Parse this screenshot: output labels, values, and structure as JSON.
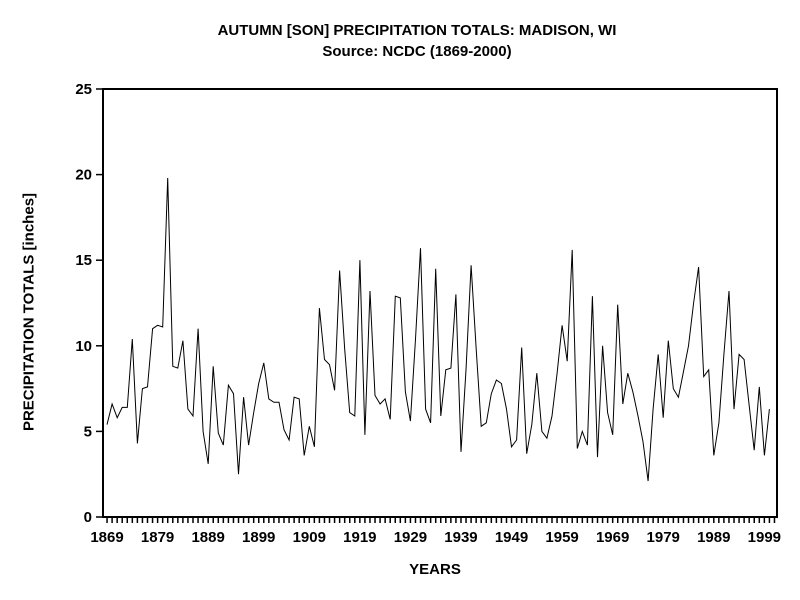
{
  "title": {
    "line1": "AUTUMN [SON] PRECIPITATION TOTALS: MADISON, WI",
    "line2": "Source: NCDC (1869-2000)"
  },
  "axes": {
    "x_label": "YEARS",
    "y_label": "PRECIPITATION TOTALS [inches]",
    "x_tick_labels": [
      1869,
      1879,
      1889,
      1899,
      1909,
      1919,
      1929,
      1939,
      1949,
      1959,
      1969,
      1979,
      1989,
      1999
    ],
    "y_tick_labels": [
      0,
      5,
      10,
      15,
      20,
      25
    ]
  },
  "colors": {
    "background": "#ffffff",
    "line": "#000000",
    "axis": "#000000",
    "text": "#000000"
  },
  "chart_data": {
    "type": "line",
    "title": "AUTUMN [SON] PRECIPITATION TOTALS: MADISON, WI",
    "subtitle": "Source: NCDC (1869-2000)",
    "xlabel": "YEARS",
    "ylabel": "PRECIPITATION TOTALS [inches]",
    "xlim": [
      1868.2,
      2001.5
    ],
    "ylim": [
      0,
      25
    ],
    "grid": false,
    "legend": "none",
    "x": [
      1869,
      1870,
      1871,
      1872,
      1873,
      1874,
      1875,
      1876,
      1877,
      1878,
      1879,
      1880,
      1881,
      1882,
      1883,
      1884,
      1885,
      1886,
      1887,
      1888,
      1889,
      1890,
      1891,
      1892,
      1893,
      1894,
      1895,
      1896,
      1897,
      1898,
      1899,
      1900,
      1901,
      1902,
      1903,
      1904,
      1905,
      1906,
      1907,
      1908,
      1909,
      1910,
      1911,
      1912,
      1913,
      1914,
      1915,
      1916,
      1917,
      1918,
      1919,
      1920,
      1921,
      1922,
      1923,
      1924,
      1925,
      1926,
      1927,
      1928,
      1929,
      1930,
      1931,
      1932,
      1933,
      1934,
      1935,
      1936,
      1937,
      1938,
      1939,
      1940,
      1941,
      1942,
      1943,
      1944,
      1945,
      1946,
      1947,
      1948,
      1949,
      1950,
      1951,
      1952,
      1953,
      1954,
      1955,
      1956,
      1957,
      1958,
      1959,
      1960,
      1961,
      1962,
      1963,
      1964,
      1965,
      1966,
      1967,
      1968,
      1969,
      1970,
      1971,
      1972,
      1973,
      1974,
      1975,
      1976,
      1977,
      1978,
      1979,
      1980,
      1981,
      1982,
      1983,
      1984,
      1985,
      1986,
      1987,
      1988,
      1989,
      1990,
      1991,
      1992,
      1993,
      1994,
      1995,
      1996,
      1997,
      1998,
      1999,
      2000
    ],
    "values": [
      5.4,
      6.6,
      5.8,
      6.4,
      6.4,
      10.4,
      4.3,
      7.5,
      7.6,
      11.0,
      11.2,
      11.1,
      19.8,
      8.8,
      8.7,
      10.3,
      6.3,
      5.9,
      11.0,
      5.0,
      3.1,
      8.8,
      4.9,
      4.2,
      7.7,
      7.2,
      2.5,
      7.0,
      4.2,
      6.1,
      7.8,
      9.0,
      6.9,
      6.7,
      6.7,
      5.1,
      4.5,
      7.0,
      6.9,
      3.6,
      5.3,
      4.1,
      12.2,
      9.2,
      8.9,
      7.4,
      14.4,
      9.8,
      6.1,
      5.9,
      15.0,
      4.8,
      13.2,
      7.1,
      6.6,
      6.9,
      5.7,
      12.9,
      12.8,
      7.3,
      5.6,
      10.4,
      15.7,
      6.3,
      5.5,
      14.5,
      5.9,
      8.6,
      8.7,
      13.0,
      3.8,
      8.6,
      14.7,
      9.8,
      5.3,
      5.5,
      7.2,
      8.0,
      7.8,
      6.3,
      4.1,
      4.5,
      9.9,
      3.7,
      5.4,
      8.4,
      5.0,
      4.6,
      5.9,
      8.4,
      11.2,
      9.1,
      15.6,
      4.0,
      5.0,
      4.2,
      12.9,
      3.5,
      10.0,
      6.1,
      4.8,
      12.4,
      6.6,
      8.4,
      7.3,
      5.9,
      4.4,
      2.1,
      6.3,
      9.5,
      5.8,
      10.3,
      7.5,
      7.0,
      8.5,
      10.0,
      12.5,
      14.6,
      8.2,
      8.6,
      3.6,
      5.5,
      9.5,
      13.2,
      6.3,
      9.5,
      9.2,
      6.5,
      3.9,
      7.6,
      3.6,
      6.3
    ]
  }
}
